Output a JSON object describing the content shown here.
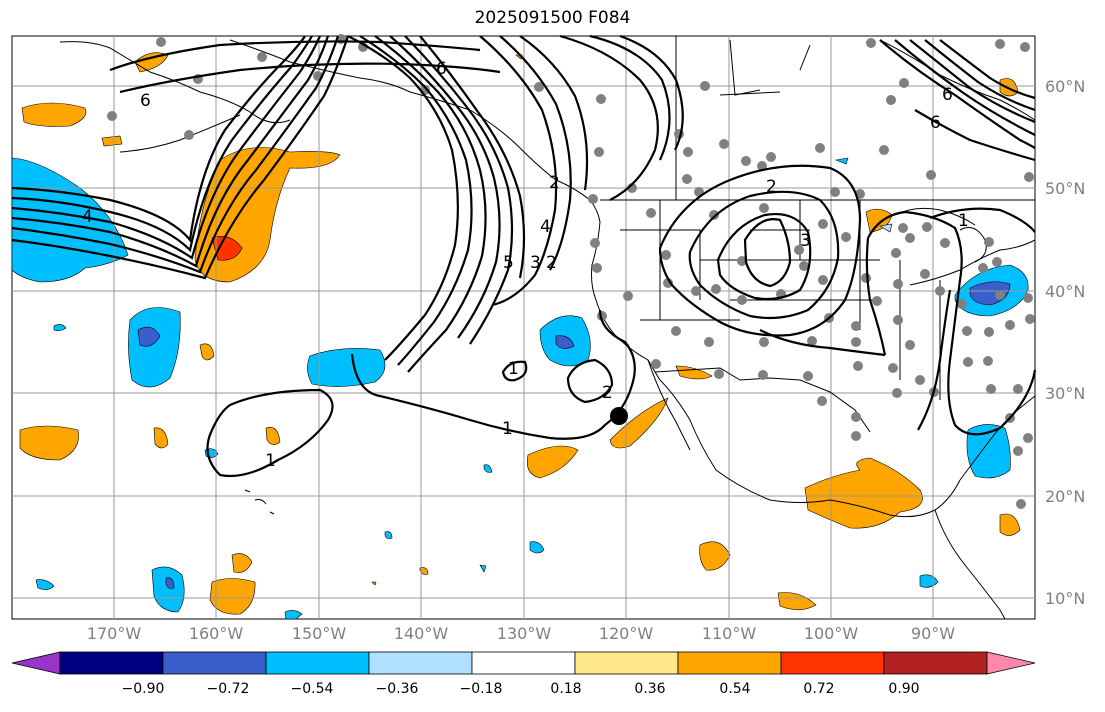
{
  "title": "2025091500 F084",
  "lat_labels": [
    "60°N",
    "50°N",
    "40°N",
    "30°N",
    "20°N",
    "10°N"
  ],
  "lon_labels": [
    "170°W",
    "160°W",
    "150°W",
    "140°W",
    "130°W",
    "120°W",
    "110°W",
    "100°W",
    "90°W"
  ],
  "contour_labels": [
    "6",
    "6",
    "4",
    "5",
    "3",
    "2",
    "4",
    "1",
    "2",
    "1",
    "1",
    "2",
    "2",
    "3",
    "6",
    "6",
    "1"
  ],
  "colorbar": {
    "ticks": [
      "−0.90",
      "−0.72",
      "−0.54",
      "−0.36",
      "−0.18",
      "0.18",
      "0.36",
      "0.54",
      "0.72",
      "0.90"
    ],
    "colors": [
      "#9933cc",
      "#000080",
      "#3a5fcd",
      "#00bfff",
      "#b0e0ff",
      "#ffffff",
      "#ffe88a",
      "#ffa500",
      "#ff3300",
      "#b22222",
      "#ff88aa"
    ]
  },
  "colors": {
    "land_outline": "#000000",
    "grid": "#999999",
    "station_dot": "#808080",
    "marker": "#000000"
  }
}
